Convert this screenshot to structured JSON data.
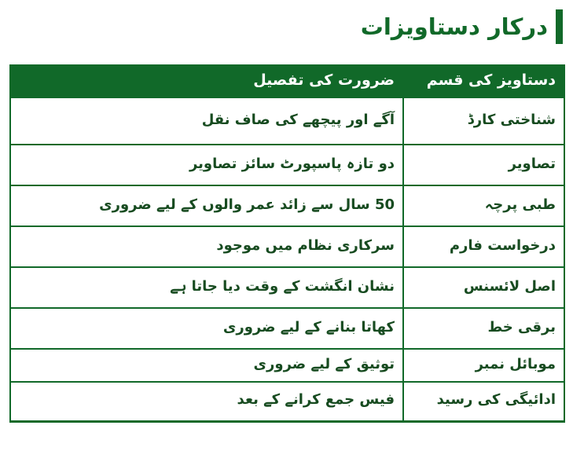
{
  "page": {
    "title": "درکار دستاویزات"
  },
  "colors": {
    "accent_green": "#116929",
    "body_text_green": "#174b20",
    "header_text": "#ffffff",
    "background": "#ffffff"
  },
  "table": {
    "headers": {
      "type": "دستاویز کی قسم",
      "detail": "ضرورت کی تفصیل"
    },
    "rows": [
      {
        "type": "شناختی کارڈ",
        "detail": "آگے اور پیچھے کی صاف نقل"
      },
      {
        "type": "تصاویر",
        "detail": "دو تازہ پاسپورٹ سائز تصاویر"
      },
      {
        "type": "طبی پرچہ",
        "detail": "50 سال سے زائد عمر والوں کے لیے ضروری"
      },
      {
        "type": "درخواست فارم",
        "detail": "سرکاری نظام میں موجود"
      },
      {
        "type": "اصل لائسنس",
        "detail": "نشان انگشت کے وقت دیا جاتا ہے"
      },
      {
        "type": "برقی خط",
        "detail": "کھاتا بنانے کے لیے ضروری"
      },
      {
        "type": "موبائل نمبر",
        "detail": "توثیق کے لیے ضروری"
      },
      {
        "type": "ادائیگی کی رسید",
        "detail": "فیس جمع کرانے کے بعد"
      }
    ]
  }
}
